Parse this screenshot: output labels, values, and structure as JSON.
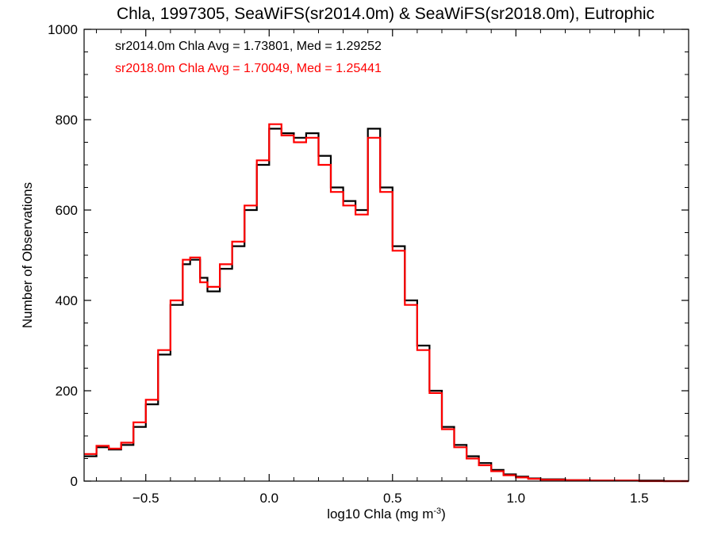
{
  "chart_data": {
    "type": "line",
    "title": "Chla, 1997305, SeaWiFS(sr2014.0m) & SeaWiFS(sr2018.0m), Eutrophic",
    "xlabel_main": "log10 Chla (mg m",
    "xlabel_sup": "-3",
    "xlabel_close": ")",
    "ylabel": "Number of Observations",
    "xlim": [
      -0.75,
      1.7
    ],
    "ylim": [
      0,
      1000
    ],
    "x_ticks": [
      -0.5,
      0.0,
      0.5,
      1.0,
      1.5
    ],
    "x_tick_labels": [
      "−0.5",
      "0.0",
      "0.5",
      "1.0",
      "1.5"
    ],
    "y_ticks": [
      0,
      200,
      400,
      600,
      800,
      1000
    ],
    "y_tick_labels": [
      "0",
      "200",
      "400",
      "600",
      "800",
      "1000"
    ],
    "grid": false,
    "x": [
      -0.75,
      -0.7,
      -0.65,
      -0.6,
      -0.55,
      -0.5,
      -0.45,
      -0.4,
      -0.35,
      -0.32,
      -0.28,
      -0.25,
      -0.2,
      -0.15,
      -0.1,
      -0.05,
      0.0,
      0.05,
      0.1,
      0.15,
      0.2,
      0.25,
      0.3,
      0.35,
      0.4,
      0.45,
      0.5,
      0.55,
      0.6,
      0.65,
      0.7,
      0.75,
      0.8,
      0.85,
      0.9,
      0.95,
      1.0,
      1.05,
      1.1,
      1.2,
      1.3,
      1.4,
      1.5,
      1.6,
      1.7
    ],
    "series": [
      {
        "name": "sr2014.0m",
        "color": "#000000",
        "values": [
          55,
          75,
          70,
          80,
          120,
          170,
          280,
          390,
          480,
          490,
          450,
          420,
          470,
          520,
          600,
          700,
          780,
          770,
          760,
          770,
          720,
          650,
          620,
          600,
          780,
          650,
          520,
          400,
          300,
          200,
          120,
          80,
          55,
          40,
          25,
          15,
          10,
          6,
          4,
          2,
          1,
          1,
          1,
          0,
          0
        ]
      },
      {
        "name": "sr2018.0m",
        "color": "#ff0000",
        "values": [
          60,
          78,
          72,
          85,
          130,
          180,
          290,
          400,
          490,
          495,
          440,
          430,
          480,
          530,
          610,
          710,
          790,
          765,
          750,
          760,
          700,
          640,
          610,
          590,
          760,
          640,
          510,
          390,
          290,
          195,
          115,
          75,
          50,
          35,
          22,
          13,
          8,
          5,
          3,
          2,
          1,
          1,
          0,
          0,
          0
        ]
      }
    ],
    "annotations": [
      {
        "text": "sr2014.0m Chla Avg = 1.73801, Med = 1.29252",
        "color": "#000000"
      },
      {
        "text": "sr2018.0m Chla Avg = 1.70049, Med = 1.25441",
        "color": "#ff0000"
      }
    ]
  }
}
